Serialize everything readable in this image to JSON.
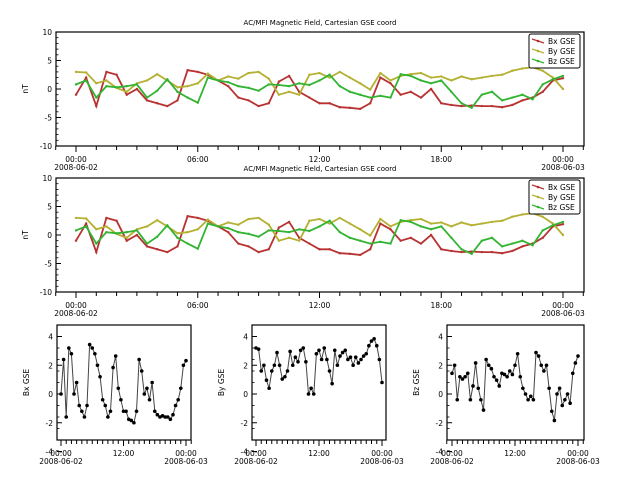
{
  "chart_data": [
    {
      "type": "line",
      "title": "AC/MFI  Magnetic Field, Cartesian GSE coord",
      "ylabel": "nT",
      "ylim": [
        -10,
        10
      ],
      "yticks": [
        "10",
        "5",
        "0",
        "-5",
        "-10"
      ],
      "xticks": [
        [
          "00:00",
          "2008-06-02"
        ],
        [
          "06:00",
          ""
        ],
        [
          "12:00",
          ""
        ],
        [
          "18:00",
          ""
        ],
        [
          "00:00",
          "2008-06-03"
        ]
      ],
      "legend_position": "top-right",
      "series": [
        {
          "name": "Bx GSE",
          "color": "#b83232"
        },
        {
          "name": "By GSE",
          "color": "#b4b032"
        },
        {
          "name": "Bz GSE",
          "color": "#32b432"
        }
      ]
    },
    {
      "type": "line",
      "title": "AC/MFI  Magnetic Field, Cartesian GSE coord",
      "ylabel": "nT",
      "ylim": [
        -10,
        10
      ],
      "yticks": [
        "10",
        "5",
        "0",
        "-5",
        "-10"
      ],
      "xticks": [
        [
          "00:00",
          "2008-06-02"
        ],
        [
          "06:00",
          ""
        ],
        [
          "12:00",
          ""
        ],
        [
          "18:00",
          ""
        ],
        [
          "00:00",
          "2008-06-03"
        ]
      ],
      "legend_position": "top-right",
      "series": [
        {
          "name": "Bx GSE",
          "color": "#b83232"
        },
        {
          "name": "By GSE",
          "color": "#b4b032"
        },
        {
          "name": "Bz GSE",
          "color": "#32b432"
        }
      ]
    },
    {
      "type": "line",
      "ylabel": "Bx GSE",
      "ylim": [
        -5,
        5
      ],
      "yticks": [
        "4",
        "2",
        "0",
        "-2",
        "-4"
      ],
      "xticks": [
        [
          "00:00",
          "2008-06-02"
        ],
        [
          "12:00",
          ""
        ],
        [
          "00:00",
          "2008-06-03"
        ]
      ],
      "series_ref": "Bx GSE"
    },
    {
      "type": "line",
      "ylabel": "By GSE",
      "ylim": [
        -5,
        5
      ],
      "yticks": [
        "4",
        "2",
        "0",
        "-2",
        "-4"
      ],
      "xticks": [
        [
          "00:00",
          "2008-06-02"
        ],
        [
          "12:00",
          ""
        ],
        [
          "00:00",
          "2008-06-03"
        ]
      ],
      "series_ref": "By GSE"
    },
    {
      "type": "line",
      "ylabel": "Bz GSE",
      "ylim": [
        -5,
        5
      ],
      "yticks": [
        "4",
        "2",
        "0",
        "-2",
        "-4"
      ],
      "xticks": [
        [
          "00:00",
          "2008-06-02"
        ],
        [
          "12:00",
          ""
        ],
        [
          "00:00",
          "2008-06-03"
        ]
      ],
      "series_ref": "Bz GSE"
    }
  ],
  "data": {
    "x_hours_since_2008-06-02T00:00": [
      0,
      0.5,
      1,
      1.5,
      2,
      2.5,
      3,
      3.5,
      4,
      4.5,
      5,
      5.5,
      6,
      6.5,
      7,
      7.5,
      8,
      8.5,
      9,
      9.5,
      10,
      10.5,
      11,
      11.5,
      12,
      12.5,
      13,
      13.5,
      14,
      14.5,
      15,
      15.5,
      16,
      16.5,
      17,
      17.5,
      18,
      18.5,
      19,
      19.5,
      20,
      20.5,
      21,
      21.5,
      22,
      22.5,
      23,
      23.5,
      24
    ],
    "Bx GSE": [
      -1,
      2,
      -3,
      3,
      2.5,
      -1,
      0,
      -2,
      -2.5,
      -3,
      -2,
      3.3,
      3,
      2.5,
      1.5,
      0.5,
      -1.5,
      -2,
      -3,
      -2.5,
      1.3,
      2.3,
      -0.5,
      -1.5,
      -2.5,
      -2.5,
      -3.2,
      -3.3,
      -3.5,
      -2.5,
      2,
      1,
      -1,
      -0.5,
      -1.5,
      0,
      -2.5,
      -2.8,
      -3,
      -2.9,
      -3,
      -3,
      -3.2,
      -2.8,
      -2,
      -1.5,
      -0.5,
      1.5,
      1.9
    ],
    "By GSE": [
      3,
      2.9,
      1,
      1.5,
      0.2,
      -0.5,
      1,
      1.5,
      2.6,
      1.5,
      0.3,
      0.5,
      1,
      2.7,
      1.5,
      2.2,
      1.8,
      2.8,
      3,
      1.8,
      -1,
      -0.5,
      -1,
      2.5,
      2.8,
      2,
      3,
      2,
      1,
      -0.1,
      2.8,
      1.5,
      2.3,
      2.6,
      2.8,
      2,
      2.2,
      1.5,
      2.2,
      1.7,
      2,
      2.3,
      2.5,
      3.2,
      3.6,
      3.8,
      3.2,
      2,
      0
    ],
    "Bz GSE": [
      0.8,
      1.5,
      -1.5,
      0.5,
      0.3,
      0.5,
      0.8,
      -1.5,
      -0.3,
      1.7,
      -0.5,
      -1.5,
      -2.4,
      2,
      1.5,
      1.2,
      0.5,
      0.2,
      -0.3,
      0.8,
      0.7,
      0.5,
      1,
      0.7,
      1.5,
      2.5,
      0.5,
      -0.5,
      -1,
      -1.5,
      -1.2,
      -1.5,
      2.6,
      2.3,
      1.5,
      1,
      1.5,
      -0.5,
      -2.5,
      -3.3,
      -1,
      -0.5,
      -2,
      -1.5,
      -1,
      -1.8,
      0.8,
      1.7,
      2.3
    ]
  }
}
